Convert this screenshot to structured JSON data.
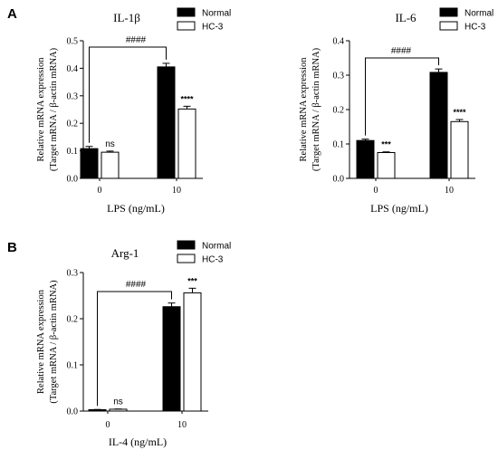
{
  "panel_labels": [
    "A",
    "B"
  ],
  "chart_data": [
    {
      "type": "bar",
      "title": "IL-1β",
      "xlabel": "LPS (ng/mL)",
      "ylabel": [
        "Relative mRNA expression",
        "(Target mRNA / β-actin mRNA)"
      ],
      "categories": [
        "0",
        "10"
      ],
      "ylim": [
        0,
        0.5
      ],
      "yticks": [
        "0.0",
        "0.1",
        "0.2",
        "0.3",
        "0.4",
        "0.5"
      ],
      "series": [
        {
          "name": "Normal",
          "values": [
            0.108,
            0.405
          ],
          "errors": [
            0.008,
            0.013
          ],
          "fill": "#000000"
        },
        {
          "name": "HC-3",
          "values": [
            0.095,
            0.252
          ],
          "errors": [
            0.004,
            0.01
          ],
          "fill": "#ffffff"
        }
      ],
      "significance": [
        "ns",
        "****"
      ],
      "bracket_label": "####"
    },
    {
      "type": "bar",
      "title": "IL-6",
      "xlabel": "LPS (ng/mL)",
      "ylabel": [
        "Relative mRNA expression",
        "(Target mRNA / β-actin mRNA)"
      ],
      "categories": [
        "0",
        "10"
      ],
      "ylim": [
        0,
        0.4
      ],
      "yticks": [
        "0.0",
        "0.1",
        "0.2",
        "0.3",
        "0.4"
      ],
      "series": [
        {
          "name": "Normal",
          "values": [
            0.11,
            0.308
          ],
          "errors": [
            0.004,
            0.01
          ],
          "fill": "#000000"
        },
        {
          "name": "HC-3",
          "values": [
            0.075,
            0.165
          ],
          "errors": [
            0.002,
            0.006
          ],
          "fill": "#ffffff"
        }
      ],
      "significance": [
        "***",
        "****"
      ],
      "bracket_label": "####"
    },
    {
      "type": "bar",
      "title": "Arg-1",
      "xlabel": "IL-4 (ng/mL)",
      "ylabel": [
        "Relative mRNA expression",
        "(Target mRNA / β-actin mRNA)"
      ],
      "categories": [
        "0",
        "10"
      ],
      "ylim": [
        0,
        0.3
      ],
      "yticks": [
        "0.0",
        "0.1",
        "0.2",
        "0.3"
      ],
      "series": [
        {
          "name": "Normal",
          "values": [
            0.003,
            0.226
          ],
          "errors": [
            0.0005,
            0.008
          ],
          "fill": "#000000"
        },
        {
          "name": "HC-3",
          "values": [
            0.004,
            0.256
          ],
          "errors": [
            0.0005,
            0.01
          ],
          "fill": "#ffffff"
        }
      ],
      "significance": [
        "ns",
        "***"
      ],
      "bracket_label": "####"
    }
  ]
}
